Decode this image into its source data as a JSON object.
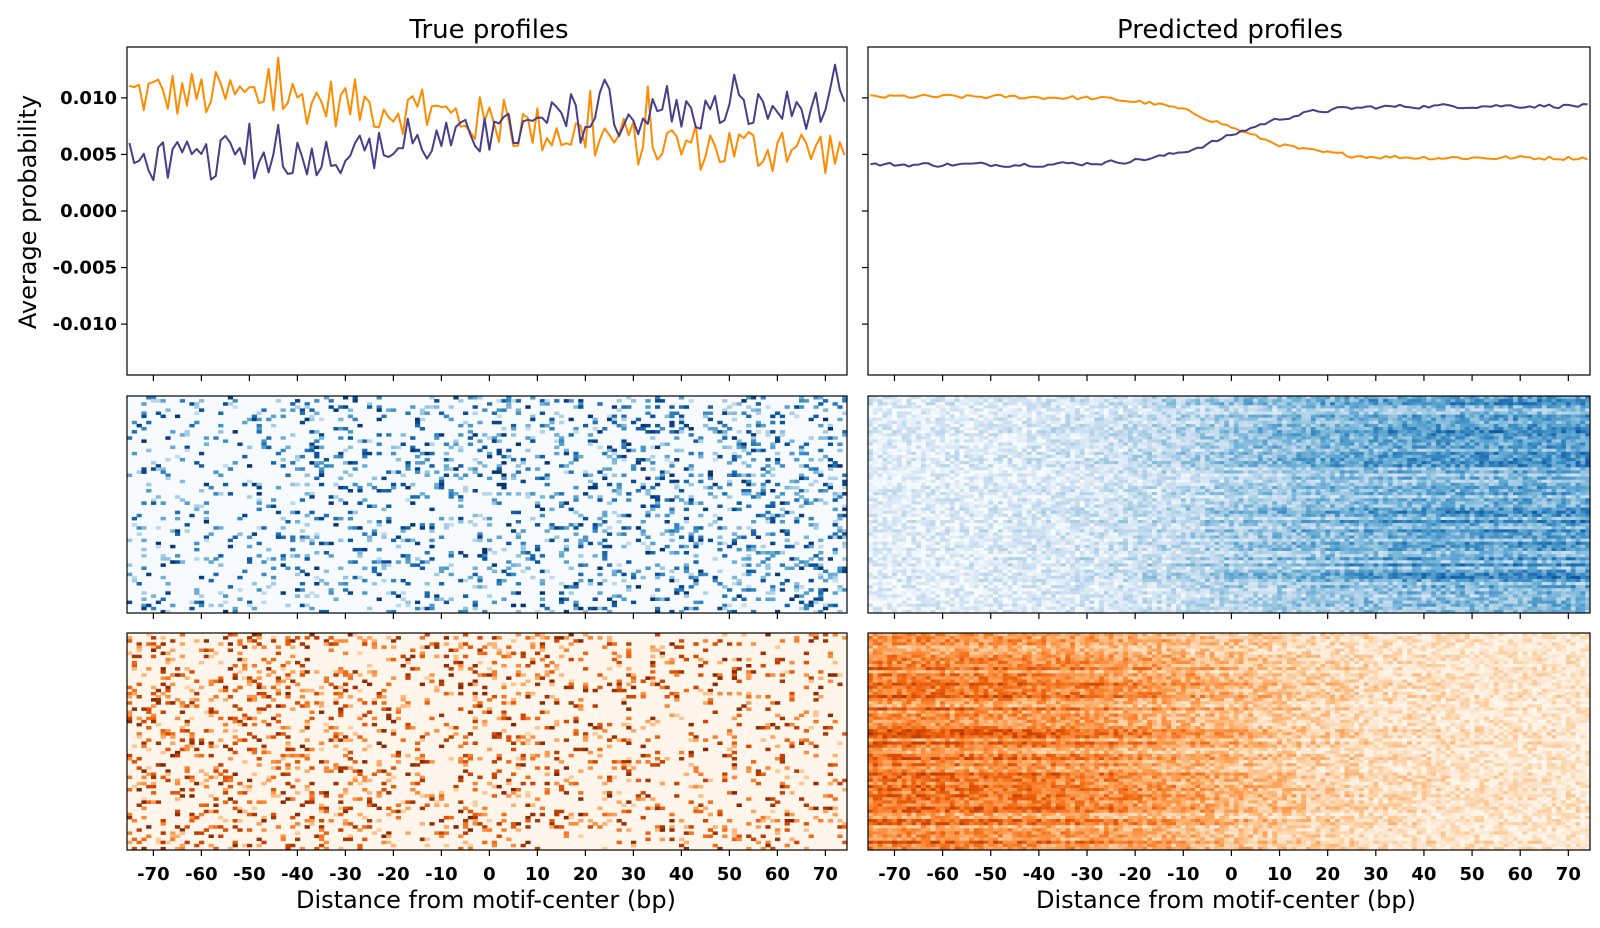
{
  "chart_data": [
    {
      "id": "true-line",
      "type": "line",
      "title": "True profiles",
      "xlabel": "",
      "ylabel": "Average probability",
      "xlim": [
        -75.5,
        74.5
      ],
      "ylim": [
        -0.0145,
        0.0145
      ],
      "yticks": [
        "0.010",
        "0.005",
        "0.000",
        "-0.005",
        "-0.010"
      ],
      "ytick_values": [
        0.01,
        0.005,
        0.0,
        -0.005,
        -0.01
      ],
      "grid": false,
      "series": [
        {
          "name": "orange",
          "color": "#ff8c00",
          "style": "noisy",
          "start": 0.0105,
          "end": 0.0052,
          "noise": 0.0022
        },
        {
          "name": "purple",
          "color": "#483d8b",
          "style": "noisy",
          "start": 0.0042,
          "end": 0.0092,
          "noise": 0.0018
        }
      ]
    },
    {
      "id": "pred-line",
      "type": "line",
      "title": "Predicted profiles",
      "xlabel": "",
      "ylabel": "",
      "xlim": [
        -75.5,
        74.5
      ],
      "ylim": [
        -0.0145,
        0.0145
      ],
      "grid": false,
      "series": [
        {
          "name": "orange",
          "color": "#ff8c00",
          "style": "smooth",
          "start": 0.0101,
          "end": 0.0047,
          "noise": 0.00018
        },
        {
          "name": "purple",
          "color": "#483d8b",
          "style": "smooth",
          "start": 0.0041,
          "end": 0.0093,
          "noise": 0.00018
        }
      ]
    },
    {
      "id": "true-blue",
      "type": "heatmap",
      "colormap": "Blues",
      "pattern": "sparse",
      "rows": 70,
      "bias": "right"
    },
    {
      "id": "pred-blue",
      "type": "heatmap",
      "colormap": "Blues",
      "pattern": "dense",
      "rows": 70,
      "bias": "right"
    },
    {
      "id": "true-orange",
      "type": "heatmap",
      "colormap": "Oranges",
      "pattern": "sparse",
      "rows": 70,
      "bias": "left",
      "xlabel": "Distance from motif-center (bp)",
      "xticks": [
        "-70",
        "-60",
        "-50",
        "-40",
        "-30",
        "-20",
        "-10",
        "0",
        "10",
        "20",
        "30",
        "40",
        "50",
        "60",
        "70"
      ],
      "xtick_values": [
        -70,
        -60,
        -50,
        -40,
        -30,
        -20,
        -10,
        0,
        10,
        20,
        30,
        40,
        50,
        60,
        70
      ]
    },
    {
      "id": "pred-orange",
      "type": "heatmap",
      "colormap": "Oranges",
      "pattern": "dense",
      "rows": 70,
      "bias": "left",
      "xlabel": "Distance from motif-center (bp)",
      "xticks": [
        "-70",
        "-60",
        "-50",
        "-40",
        "-30",
        "-20",
        "-10",
        "0",
        "10",
        "20",
        "30",
        "40",
        "50",
        "60",
        "70"
      ],
      "xtick_values": [
        -70,
        -60,
        -50,
        -40,
        -30,
        -20,
        -10,
        0,
        10,
        20,
        30,
        40,
        50,
        60,
        70
      ]
    }
  ],
  "colors": {
    "blues_low": "#f7fbff",
    "blues_high": "#08306b",
    "oranges_low": "#fff5eb",
    "oranges_high": "#7f2704"
  }
}
